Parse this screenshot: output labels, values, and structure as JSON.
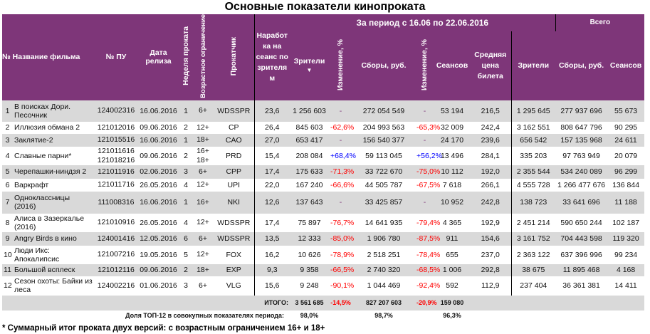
{
  "title": "Основные показатели кинопроката",
  "header": {
    "num_name": "№ Название фильма",
    "pu": "№ ПУ",
    "date": "Дата релиза",
    "week": "Неделя проката",
    "age": "Возрастное ограничение",
    "dist": "Прокатчик",
    "per_session": "Наработ ка на сеанс по зрителя м",
    "period": "За период с 16.06 по 22.06.2016",
    "viewers": "Зрители",
    "sort_icon": "▼",
    "change": "Изменение, %",
    "gross": "Сборы, руб.",
    "sessions": "Сеансов",
    "avg_price": "Средняя цена билета",
    "total": "Всего",
    "t_viewers": "Зрители",
    "t_gross": "Сборы, руб.",
    "t_sessions": "Сеансов"
  },
  "colors": {
    "header": "#7e3679",
    "stripe": "#d9d9d9",
    "negative": "#ff0000",
    "positive": "#0000ff"
  },
  "rows": [
    {
      "n": "1",
      "name": "В поисках Дори. Песочник",
      "pu": "124002316",
      "date": "16.06.2016",
      "week": "1",
      "age": "6+",
      "dist": "WDSSPR",
      "ps": "23,6",
      "v": "1 256 603",
      "vc": "-",
      "g": "272 054 549",
      "gc": "-",
      "s": "53 194",
      "p": "216,5",
      "tv": "1 295 645",
      "tg": "277 937 696",
      "ts": "55 673"
    },
    {
      "n": "2",
      "name": "Иллюзия обмана 2",
      "pu": "121012016",
      "date": "09.06.2016",
      "week": "2",
      "age": "12+",
      "dist": "CP",
      "ps": "26,4",
      "v": "845 603",
      "vc": "-62,6%",
      "g": "204 993 563",
      "gc": "-65,3%",
      "s": "32 009",
      "p": "242,4",
      "tv": "3 162 551",
      "tg": "808 647 796",
      "ts": "90 295"
    },
    {
      "n": "3",
      "name": "Заклятие-2",
      "pu": "121015516",
      "date": "16.06.2016",
      "week": "1",
      "age": "18+",
      "dist": "CAO",
      "ps": "27,0",
      "v": "653 417",
      "vc": "-",
      "g": "156 540 377",
      "gc": "-",
      "s": "24 170",
      "p": "239,6",
      "tv": "656 542",
      "tg": "157 135 968",
      "ts": "24 611"
    },
    {
      "n": "4",
      "name": "Славные парни*",
      "pu": "121011616 121018216",
      "date": "09.06.2016",
      "week": "2",
      "age": "16+ 18+",
      "dist": "PRD",
      "ps": "15,4",
      "v": "208 084",
      "vc": "+68,4%",
      "g": "59 113 045",
      "gc": "+56,2%",
      "s": "13 496",
      "p": "284,1",
      "tv": "335 203",
      "tg": "97 763 949",
      "ts": "20 079"
    },
    {
      "n": "5",
      "name": "Черепашки-ниндзя 2",
      "pu": "121011916",
      "date": "02.06.2016",
      "week": "3",
      "age": "6+",
      "dist": "CPP",
      "ps": "17,4",
      "v": "175 633",
      "vc": "-71,3%",
      "g": "33 722 670",
      "gc": "-75,0%",
      "s": "10 112",
      "p": "192,0",
      "tv": "2 355 544",
      "tg": "534 240 089",
      "ts": "96 299"
    },
    {
      "n": "6",
      "name": "Варкрафт",
      "pu": "121011716",
      "date": "26.05.2016",
      "week": "4",
      "age": "12+",
      "dist": "UPI",
      "ps": "22,0",
      "v": "167 240",
      "vc": "-66,6%",
      "g": "44 505 787",
      "gc": "-67,5%",
      "s": "7 618",
      "p": "266,1",
      "tv": "4 555 728",
      "tg": "1 266 477 676",
      "ts": "136 844"
    },
    {
      "n": "7",
      "name": "Одноклассницы (2016)",
      "pu": "111008316",
      "date": "16.06.2016",
      "week": "1",
      "age": "16+",
      "dist": "NKI",
      "ps": "12,6",
      "v": "137 643",
      "vc": "-",
      "g": "33 425 857",
      "gc": "-",
      "s": "10 952",
      "p": "242,8",
      "tv": "138 723",
      "tg": "33 641 696",
      "ts": "11 188"
    },
    {
      "n": "8",
      "name": "Алиса в Зазеркалье (2016)",
      "pu": "121010916",
      "date": "26.05.2016",
      "week": "4",
      "age": "12+",
      "dist": "WDSSPR",
      "ps": "17,4",
      "v": "75 897",
      "vc": "-76,7%",
      "g": "14 641 935",
      "gc": "-79,4%",
      "s": "4 365",
      "p": "192,9",
      "tv": "2 451 214",
      "tg": "590 650 244",
      "ts": "102 187"
    },
    {
      "n": "9",
      "name": "Angry Birds в кино",
      "pu": "124001416",
      "date": "12.05.2016",
      "week": "6",
      "age": "6+",
      "dist": "WDSSPR",
      "ps": "13,5",
      "v": "12 333",
      "vc": "-85,0%",
      "g": "1 906 780",
      "gc": "-87,5%",
      "s": "911",
      "p": "154,6",
      "tv": "3 161 752",
      "tg": "704 443 598",
      "ts": "119 320"
    },
    {
      "n": "10",
      "name": "Люди Икс: Апокалипсис",
      "pu": "121007216",
      "date": "19.05.2016",
      "week": "5",
      "age": "12+",
      "dist": "FOX",
      "ps": "16,2",
      "v": "10 626",
      "vc": "-78,9%",
      "g": "2 518 251",
      "gc": "-78,4%",
      "s": "655",
      "p": "237,0",
      "tv": "2 363 122",
      "tg": "637 396 996",
      "ts": "99 234"
    },
    {
      "n": "11",
      "name": "Большой всплеск",
      "pu": "121012116",
      "date": "09.06.2016",
      "week": "2",
      "age": "18+",
      "dist": "EXP",
      "ps": "9,3",
      "v": "9 358",
      "vc": "-66,5%",
      "g": "2 740 320",
      "gc": "-68,5%",
      "s": "1 006",
      "p": "292,8",
      "tv": "38 675",
      "tg": "11 895 468",
      "ts": "4 168"
    },
    {
      "n": "12",
      "name": "Сезон охоты: Байки из леса",
      "pu": "124002216",
      "date": "01.06.2016",
      "week": "3",
      "age": "6+",
      "dist": "VLG",
      "ps": "15,6",
      "v": "9 248",
      "vc": "-90,1%",
      "g": "1 044 469",
      "gc": "-92,4%",
      "s": "592",
      "p": "112,9",
      "tv": "237 404",
      "tg": "36 361 381",
      "ts": "14 411"
    }
  ],
  "total": {
    "label": "ИТОГО:",
    "v": "3 561 685",
    "vc": "-14,5%",
    "g": "827 207 603",
    "gc": "-20,9%",
    "s": "159 080"
  },
  "share": {
    "label": "Доля ТОП-12 в совокупных показателях периода:",
    "v": "98,0%",
    "g": "98,7%",
    "s": "96,3%"
  },
  "footnote": "* Суммарный итог проката двух версий: с возрастным ограничением 16+ и 18+"
}
